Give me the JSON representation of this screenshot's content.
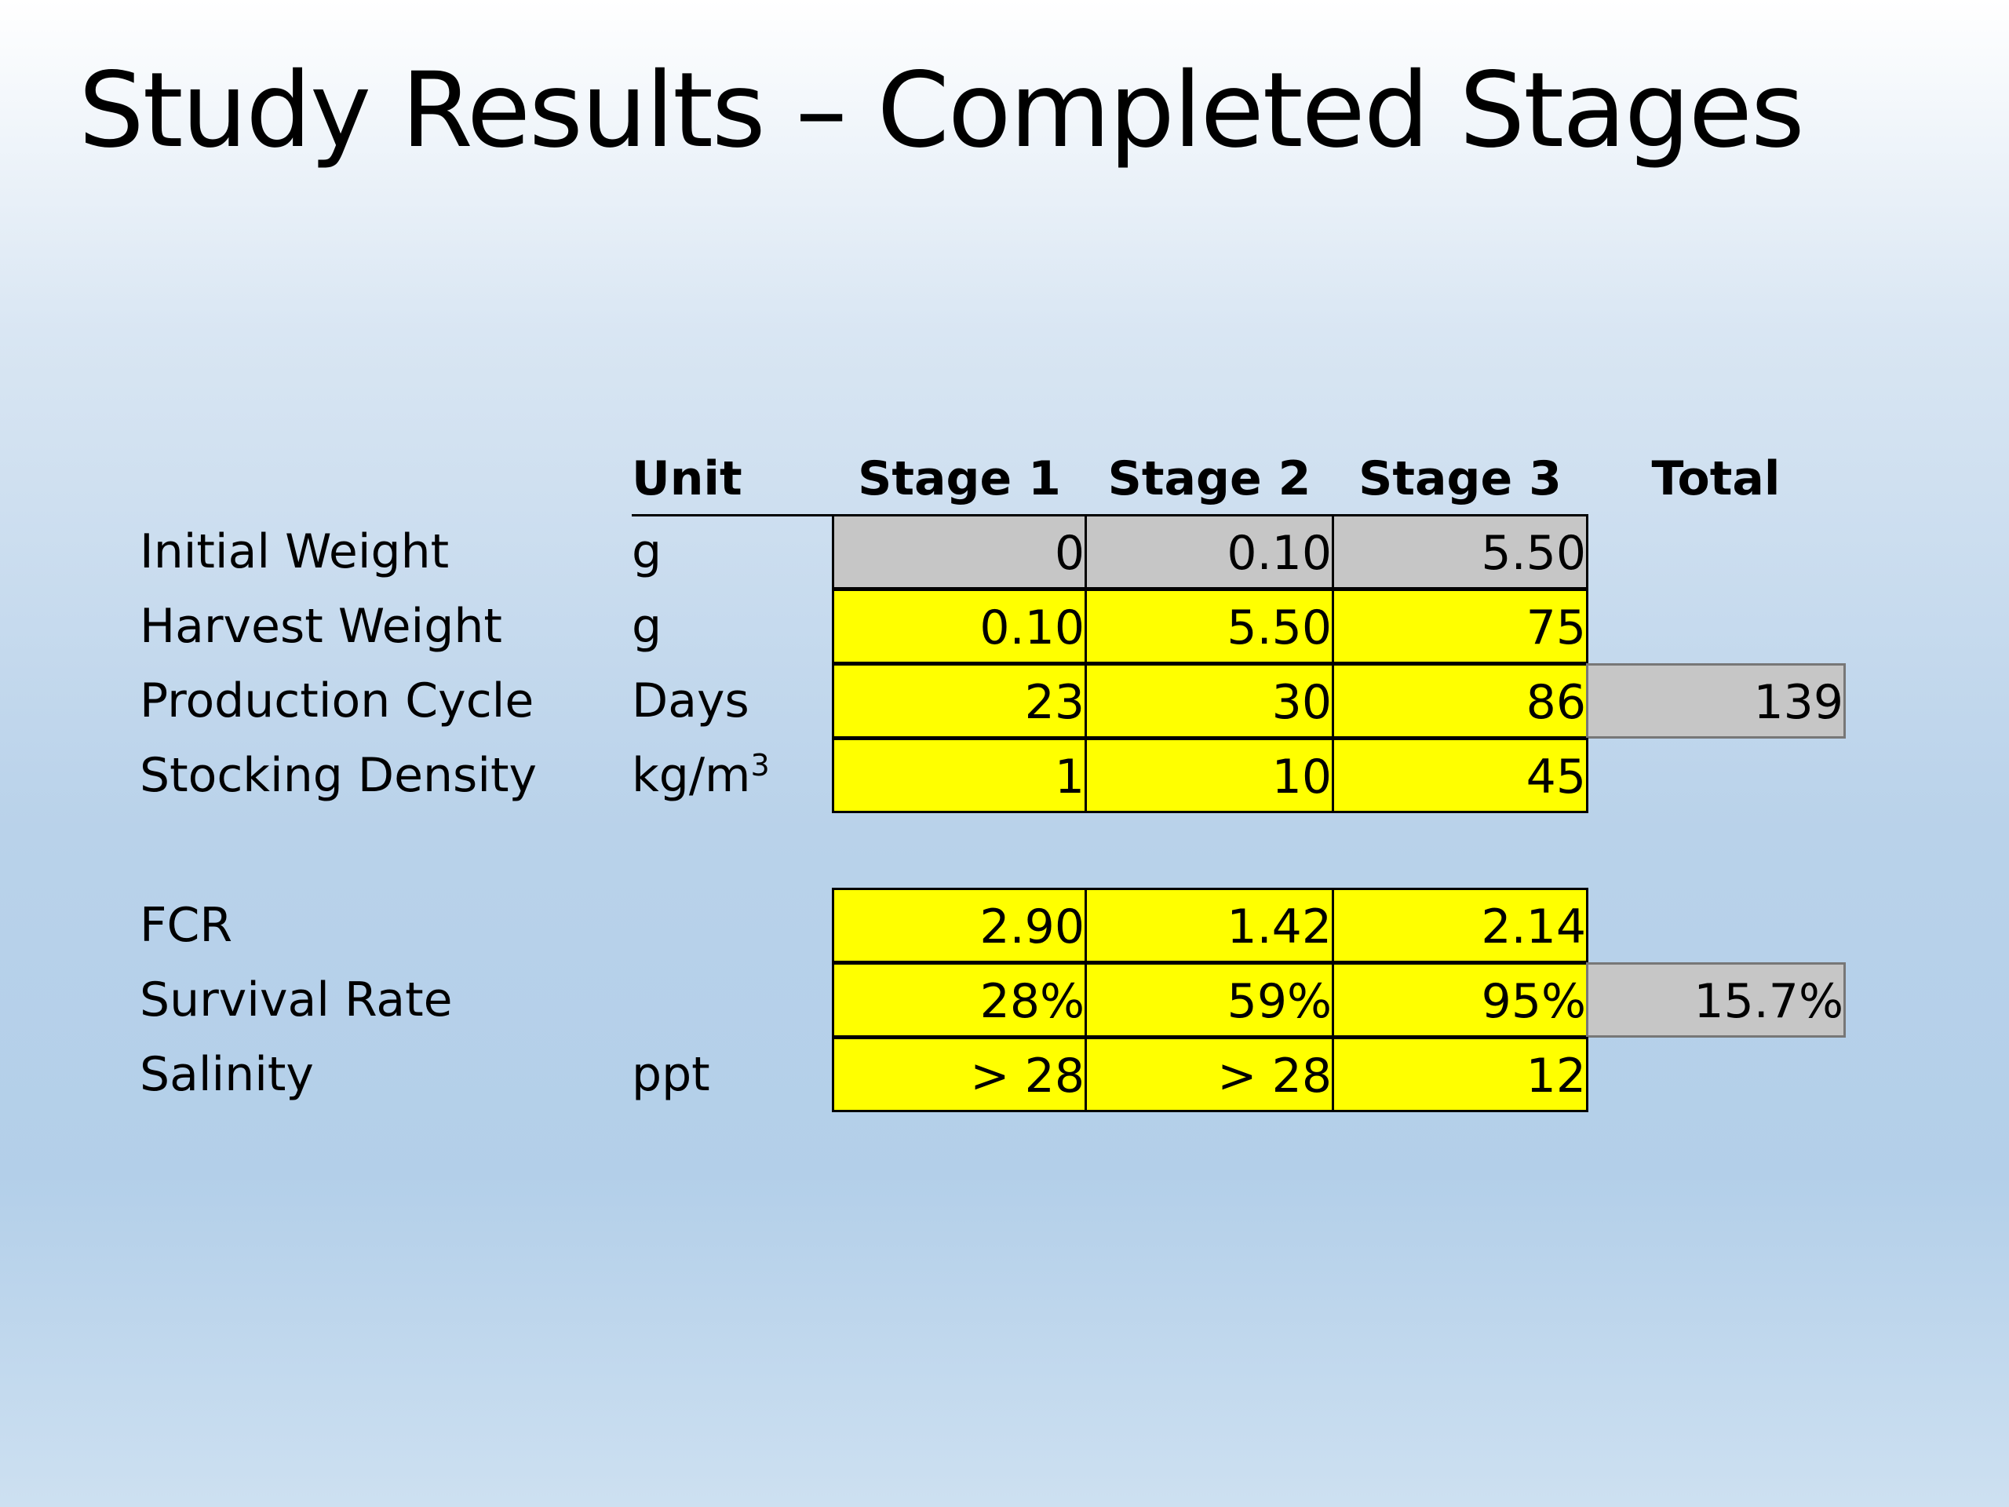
{
  "title": "Study Results – Completed Stages",
  "table": {
    "headers": {
      "unit": "Unit",
      "stage1": "Stage 1",
      "stage2": "Stage 2",
      "stage3": "Stage 3",
      "total": "Total"
    },
    "rows": [
      {
        "label": "Initial Weight",
        "unit": "g",
        "stage1": "0",
        "stage2": "0.10",
        "stage3": "5.50",
        "total": ""
      },
      {
        "label": "Harvest Weight",
        "unit": "g",
        "stage1": "0.10",
        "stage2": "5.50",
        "stage3": "75",
        "total": ""
      },
      {
        "label": "Production Cycle",
        "unit": "Days",
        "stage1": "23",
        "stage2": "30",
        "stage3": "86",
        "total": "139"
      },
      {
        "label": "Stocking Density",
        "unit": "kg/m",
        "unit_sup": "3",
        "stage1": "1",
        "stage2": "10",
        "stage3": "45",
        "total": ""
      },
      {
        "label": "FCR",
        "unit": "",
        "stage1": "2.90",
        "stage2": "1.42",
        "stage3": "2.14",
        "total": ""
      },
      {
        "label": "Survival Rate",
        "unit": "",
        "stage1": "28%",
        "stage2": "59%",
        "stage3": "95%",
        "total": "15.7%"
      },
      {
        "label": "Salinity",
        "unit": "ppt",
        "stage1": "> 28",
        "stage2": "> 28",
        "stage3": "12",
        "total": ""
      }
    ]
  },
  "colors": {
    "highlight": "#ffff00",
    "computed": "#c6c6c6"
  }
}
